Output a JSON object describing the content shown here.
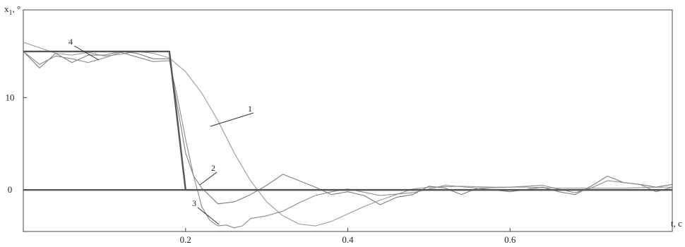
{
  "chart_data": {
    "type": "line",
    "title": "",
    "ylabel": "x",
    "ylabel_sub": "1",
    "ylabel_unit": ", °",
    "xlabel": "t, c",
    "xlim": [
      0,
      0.8
    ],
    "ylim": [
      -4.5,
      19.5
    ],
    "xticks": [
      0.2,
      0.4,
      0.6
    ],
    "yticks": [
      0,
      10
    ],
    "grid": false,
    "reference_line_y": 0,
    "series": [
      {
        "name": "1",
        "color": "#9a9a9a",
        "x": [
          0,
          0.02,
          0.04,
          0.06,
          0.08,
          0.1,
          0.12,
          0.14,
          0.16,
          0.18,
          0.2,
          0.22,
          0.24,
          0.26,
          0.28,
          0.3,
          0.32,
          0.34,
          0.36,
          0.38,
          0.4,
          0.42,
          0.44,
          0.46,
          0.48,
          0.5,
          0.54,
          0.58,
          0.62,
          0.66,
          0.7,
          0.74,
          0.78,
          0.8
        ],
        "y": [
          16,
          15.4,
          14.8,
          14.6,
          14.9,
          14.5,
          14.7,
          15,
          14.8,
          14.3,
          12.8,
          10.5,
          7.5,
          4,
          1,
          -1.3,
          -2.8,
          -3.7,
          -3.9,
          -3.4,
          -2.6,
          -1.8,
          -1.1,
          -0.5,
          0.1,
          0.3,
          0.4,
          0.3,
          0.3,
          0.2,
          0.2,
          0.2,
          0.3,
          0.3
        ]
      },
      {
        "name": "2",
        "color": "#7d7d7d",
        "x": [
          0,
          0.02,
          0.04,
          0.06,
          0.08,
          0.1,
          0.12,
          0.14,
          0.16,
          0.18,
          0.19,
          0.2,
          0.21,
          0.22,
          0.24,
          0.26,
          0.28,
          0.3,
          0.32,
          0.34,
          0.36,
          0.38,
          0.4,
          0.42,
          0.44,
          0.46,
          0.48,
          0.5,
          0.52,
          0.54,
          0.56,
          0.6,
          0.64,
          0.66,
          0.68,
          0.7,
          0.72,
          0.74,
          0.76,
          0.78,
          0.8
        ],
        "y": [
          15,
          13.2,
          14.8,
          13.8,
          14.6,
          14.6,
          15,
          14.8,
          14.2,
          14.2,
          9,
          4,
          1.5,
          0.2,
          -1.5,
          -1.3,
          -0.5,
          0.5,
          1.7,
          1,
          0.3,
          -0.5,
          -0.2,
          -0.6,
          -1.6,
          -0.8,
          -0.5,
          0.4,
          0.2,
          -0.5,
          0.2,
          -0.2,
          0.3,
          -0.2,
          -0.5,
          0.4,
          1.5,
          0.8,
          0.6,
          0.3,
          0.6
        ]
      },
      {
        "name": "3",
        "color": "#8a8a8a",
        "x": [
          0,
          0.02,
          0.04,
          0.06,
          0.08,
          0.1,
          0.12,
          0.14,
          0.16,
          0.18,
          0.19,
          0.2,
          0.21,
          0.22,
          0.23,
          0.24,
          0.25,
          0.26,
          0.27,
          0.28,
          0.3,
          0.32,
          0.34,
          0.36,
          0.38,
          0.4,
          0.44,
          0.48,
          0.52,
          0.56,
          0.6,
          0.64,
          0.68,
          0.7,
          0.72,
          0.76,
          0.78,
          0.8
        ],
        "y": [
          15,
          13.6,
          14.5,
          14.2,
          13.8,
          14.3,
          14.9,
          14.4,
          13.9,
          14,
          10,
          5.5,
          1.5,
          -1.8,
          -3.3,
          -3.9,
          -3.8,
          -4.1,
          -3.9,
          -3.1,
          -2.8,
          -2.3,
          -1.4,
          -0.6,
          -0.2,
          0.1,
          -0.6,
          -0.3,
          0.5,
          0.2,
          0.3,
          0.5,
          -0.3,
          0.2,
          1,
          0.6,
          -0.2,
          0.3
        ]
      },
      {
        "name": "4",
        "color": "#555555",
        "x": [
          0,
          0.18,
          0.2,
          0.8
        ],
        "y": [
          15,
          15,
          0,
          0
        ]
      }
    ],
    "annotations": [
      {
        "text": "1",
        "series": "1"
      },
      {
        "text": "2",
        "series": "2"
      },
      {
        "text": "3",
        "series": "3"
      },
      {
        "text": "4",
        "series": "4"
      }
    ]
  }
}
